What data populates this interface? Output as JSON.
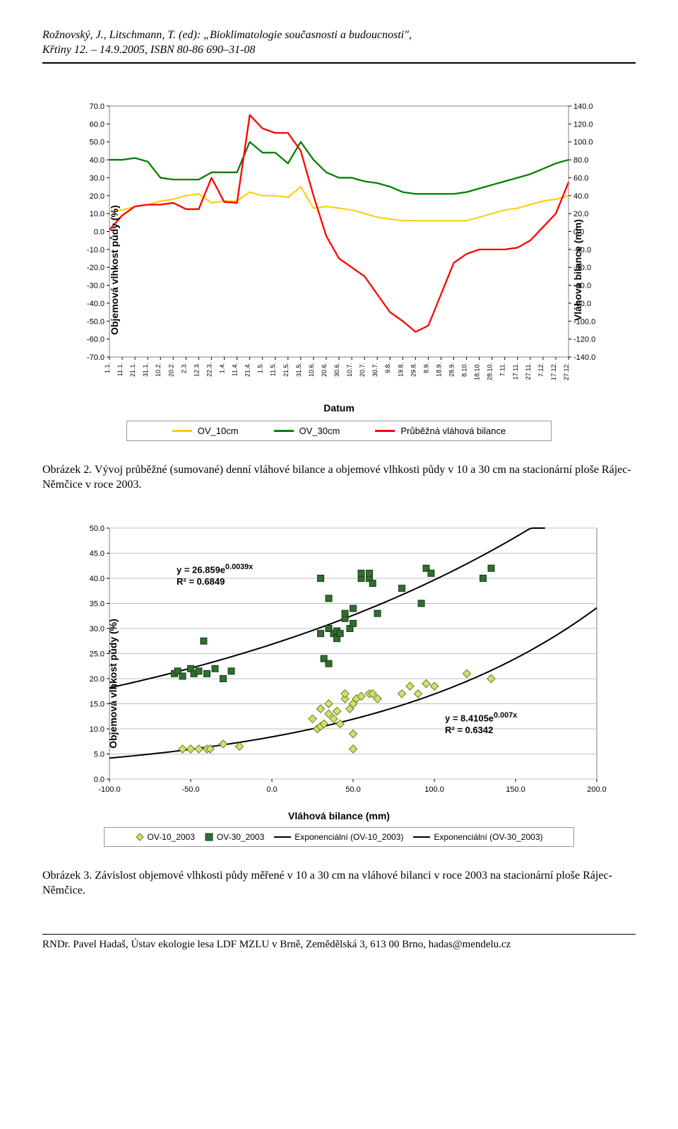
{
  "header": {
    "line1": "Rožnovský, J., Litschmann, T. (ed): „Bioklimatologie současnosti a budoucnosti\",",
    "line2": "Křtiny 12. – 14.9.2005, ISBN 80-86 690–31-08"
  },
  "chart1": {
    "type": "line",
    "ylabel_left": "Objemová vlhkost půdy (%)",
    "ylabel_right": "Vláhová bilance (mm)",
    "xlabel": "Datum",
    "ylim_left": [
      -70,
      70
    ],
    "ytick_left_step": 10,
    "ylim_right": [
      -140,
      140
    ],
    "ytick_right_step": 20,
    "x_categories": [
      "1.1.",
      "11.1.",
      "21.1.",
      "31.1.",
      "10.2.",
      "20.2.",
      "2.3.",
      "12.3.",
      "22.3.",
      "1.4.",
      "11.4.",
      "21.4.",
      "1.5.",
      "11.5.",
      "21.5.",
      "31.5.",
      "10.6.",
      "20.6.",
      "30.6.",
      "10.7.",
      "20.7.",
      "30.7.",
      "9.8.",
      "19.8.",
      "29.8.",
      "8.9.",
      "18.9.",
      "28.9.",
      "8.10.",
      "18.10.",
      "28.10.",
      "7.11.",
      "17.11.",
      "27.11.",
      "7.12.",
      "17.12.",
      "27.12."
    ],
    "background_color": "#ffffff",
    "border_color": "#808080",
    "series": [
      {
        "name": "OV_10cm",
        "color": "#ffcc00",
        "width": 2,
        "y": [
          11,
          12,
          14,
          15,
          17,
          18,
          20,
          21,
          16,
          17,
          17,
          22,
          20,
          20,
          19,
          25,
          13,
          14,
          13,
          12,
          10,
          8,
          7,
          6,
          6,
          6,
          6,
          6,
          6,
          8,
          10,
          12,
          13,
          15,
          17,
          18,
          20
        ]
      },
      {
        "name": "OV_30cm",
        "color": "#008000",
        "width": 2.3,
        "y": [
          40,
          40,
          41,
          39,
          30,
          29,
          29,
          29,
          33,
          33,
          33,
          50,
          44,
          44,
          38,
          50,
          40,
          33,
          30,
          30,
          28,
          27,
          25,
          22,
          21,
          21,
          21,
          21,
          22,
          24,
          26,
          28,
          30,
          32,
          35,
          38,
          40
        ]
      },
      {
        "name": "Průběžná vláhová bilance",
        "color": "#ff0000",
        "width": 2.3,
        "axis": "right",
        "y": [
          2,
          18,
          28,
          30,
          30,
          32,
          25,
          25,
          60,
          33,
          32,
          130,
          115,
          110,
          110,
          90,
          40,
          -5,
          -30,
          -40,
          -50,
          -70,
          -90,
          -100,
          -112,
          -105,
          -70,
          -35,
          -25,
          -20,
          -20,
          -20,
          -18,
          -10,
          5,
          20,
          55
        ]
      }
    ],
    "legend": [
      "OV_10cm",
      "OV_30cm",
      "Průběžná vláhová bilance"
    ]
  },
  "caption1": "Obrázek 2. Vývoj průběžné (sumované) denní vláhové bilance a objemové vlhkosti půdy v 10 a 30 cm na stacionární ploše Rájec-Němčice v roce 2003.",
  "chart2": {
    "type": "scatter",
    "ylabel": "Objemová vlhkost půdy (%)",
    "xlabel": "Vláhová bilance (mm)",
    "xlim": [
      -100,
      200
    ],
    "xtick_step": 50,
    "ylim": [
      0,
      50
    ],
    "ytick_step": 5,
    "background_color": "#ffffff",
    "grid_color": "#c0c0c0",
    "border_color": "#808080",
    "eq1": {
      "text1": "y = 26.859e",
      "exp": "0.0039x",
      "text2": "R² = 0.6849"
    },
    "eq2": {
      "text1": "y = 8.4105e",
      "exp": "0.007x",
      "text2": "R² = 0.6342"
    },
    "series_squares": {
      "marker": "square",
      "size": 9,
      "fill": "#2f6f2f",
      "stroke": "#163d16",
      "points": [
        [
          -60,
          21
        ],
        [
          -58,
          21.5
        ],
        [
          -55,
          20.5
        ],
        [
          -50,
          22
        ],
        [
          -48,
          21
        ],
        [
          -45,
          21.5
        ],
        [
          -42,
          27.5
        ],
        [
          -40,
          21
        ],
        [
          -35,
          22
        ],
        [
          -30,
          20
        ],
        [
          -25,
          21.5
        ],
        [
          30,
          29
        ],
        [
          30,
          40
        ],
        [
          32,
          24
        ],
        [
          35,
          36
        ],
        [
          35,
          30
        ],
        [
          35,
          23
        ],
        [
          38,
          29
        ],
        [
          40,
          29.5
        ],
        [
          40,
          28
        ],
        [
          42,
          29
        ],
        [
          45,
          32
        ],
        [
          45,
          33
        ],
        [
          48,
          30
        ],
        [
          50,
          31
        ],
        [
          50,
          34
        ],
        [
          55,
          40
        ],
        [
          55,
          41
        ],
        [
          60,
          40
        ],
        [
          60,
          41
        ],
        [
          62,
          39
        ],
        [
          65,
          33
        ],
        [
          80,
          38
        ],
        [
          92,
          35
        ],
        [
          95,
          42
        ],
        [
          98,
          41
        ],
        [
          130,
          40
        ],
        [
          135,
          42
        ]
      ]
    },
    "series_diamonds": {
      "marker": "diamond",
      "size": 9,
      "fill": "#d0e070",
      "stroke": "#6b7a1e",
      "points": [
        [
          -55,
          6
        ],
        [
          -50,
          6
        ],
        [
          -45,
          6
        ],
        [
          -40,
          6
        ],
        [
          -38,
          6
        ],
        [
          -30,
          7
        ],
        [
          -20,
          6.5
        ],
        [
          25,
          12
        ],
        [
          28,
          10
        ],
        [
          30,
          10.5
        ],
        [
          30,
          14
        ],
        [
          32,
          11
        ],
        [
          35,
          13
        ],
        [
          35,
          15
        ],
        [
          38,
          12
        ],
        [
          40,
          13.5
        ],
        [
          42,
          11
        ],
        [
          45,
          16
        ],
        [
          45,
          17
        ],
        [
          48,
          14
        ],
        [
          50,
          15
        ],
        [
          50,
          9
        ],
        [
          50,
          6
        ],
        [
          52,
          16
        ],
        [
          55,
          16.5
        ],
        [
          60,
          17
        ],
        [
          62,
          17
        ],
        [
          65,
          16
        ],
        [
          80,
          17
        ],
        [
          85,
          18.5
        ],
        [
          90,
          17
        ],
        [
          95,
          19
        ],
        [
          100,
          18.5
        ],
        [
          120,
          21
        ],
        [
          135,
          20
        ]
      ]
    },
    "curve1": {
      "a": 26.859,
      "b": 0.0039,
      "color": "#000000",
      "width": 2
    },
    "curve2": {
      "a": 8.4105,
      "b": 0.007,
      "color": "#000000",
      "width": 2
    },
    "legend": [
      "OV-10_2003",
      "OV-30_2003",
      "Exponenciální (OV-10_2003)",
      "Exponenciální (OV-30_2003)"
    ]
  },
  "caption2": "Obrázek 3. Závislost objemové vlhkosti půdy měřené v 10 a 30 cm na vláhové bilanci v roce 2003 na stacionární ploše Rájec-Němčice.",
  "footer": "RNDr. Pavel Hadaš, Ústav ekologie lesa LDF MZLU v Brně, Zemědělská 3, 613 00 Brno, hadas@mendelu.cz"
}
